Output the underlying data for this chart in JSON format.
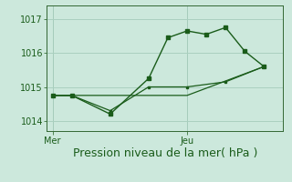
{
  "xlabel": "Pression niveau de la mer( hPa )",
  "background_color": "#cce8dc",
  "line_color": "#1a5c1a",
  "grid_color": "#aad0c0",
  "spine_color": "#336633",
  "yticks": [
    1014,
    1015,
    1016,
    1017
  ],
  "xtick_labels": [
    "Mer",
    "Jeu"
  ],
  "xtick_positions": [
    0,
    7
  ],
  "series1_x": [
    0,
    1,
    3,
    5,
    6,
    7,
    8,
    9,
    10,
    11
  ],
  "series1_y": [
    1014.75,
    1014.75,
    1014.2,
    1015.25,
    1016.45,
    1016.65,
    1016.55,
    1016.75,
    1016.05,
    1015.6
  ],
  "series2_x": [
    0,
    1,
    3,
    5,
    7,
    9,
    11
  ],
  "series2_y": [
    1014.75,
    1014.75,
    1014.3,
    1015.0,
    1015.0,
    1015.15,
    1015.6
  ],
  "series3_x": [
    0,
    7,
    11
  ],
  "series3_y": [
    1014.75,
    1014.75,
    1015.6
  ],
  "ylim": [
    1013.7,
    1017.4
  ],
  "xlim": [
    -0.3,
    12.0
  ],
  "xlabel_fontsize": 9,
  "ytick_fontsize": 7,
  "xtick_fontsize": 7
}
